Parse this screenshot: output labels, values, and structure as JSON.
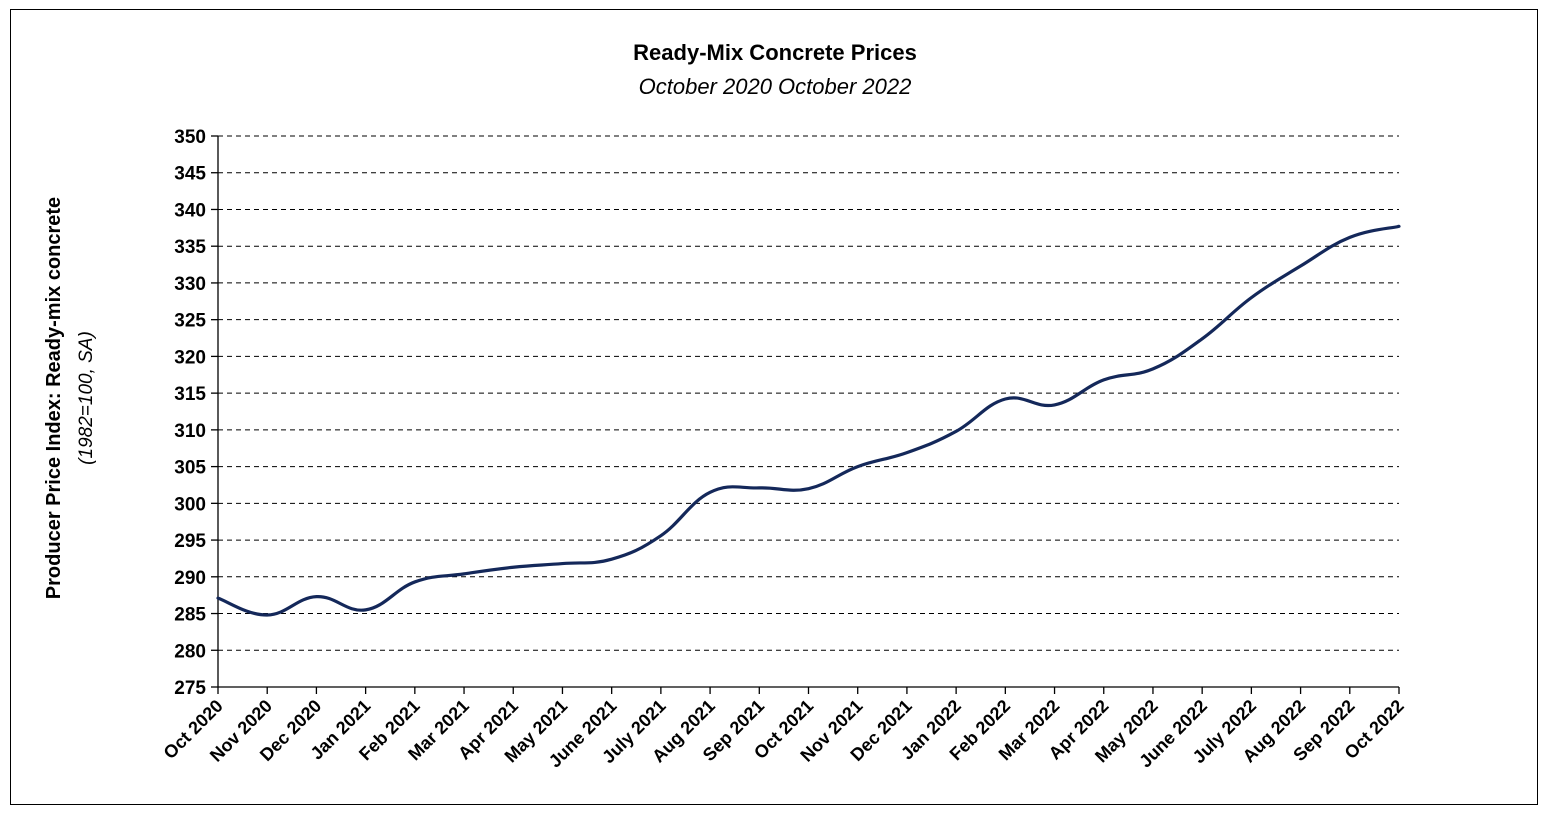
{
  "chart_data": {
    "type": "line",
    "title": "Ready-Mix Concrete Prices",
    "subtitle": "October 2020 October 2022",
    "xlabel": "",
    "ylabel": "Producer Price Index: Ready-mix concrete",
    "ylabel_sub": "(1982=100, SA)",
    "ylim": [
      275,
      350
    ],
    "ytick_step": 5,
    "grid": "horizontal dashed",
    "line_color": "#14285a",
    "categories": [
      "Oct 2020",
      "Nov 2020",
      "Dec 2020",
      "Jan 2021",
      "Feb 2021",
      "Mar 2021",
      "Apr 2021",
      "May 2021",
      "June 2021",
      "July 2021",
      "Aug 2021",
      "Sep 2021",
      "Oct 2021",
      "Nov 2021",
      "Dec 2021",
      "Jan 2022",
      "Feb 2022",
      "Mar 2022",
      "Apr 2022",
      "May 2022",
      "June 2022",
      "July 2022",
      "Aug 2022",
      "Sep 2022",
      "Oct 2022"
    ],
    "series": [
      {
        "values": [
          287.1,
          284.8,
          287.3,
          285.5,
          289.3,
          290.4,
          291.3,
          291.8,
          292.4,
          295.6,
          301.5,
          302.1,
          302.0,
          305.0,
          306.9,
          309.8,
          314.2,
          313.4,
          316.8,
          318.3,
          322.4,
          328.0,
          332.3,
          336.2,
          337.7
        ]
      }
    ]
  }
}
